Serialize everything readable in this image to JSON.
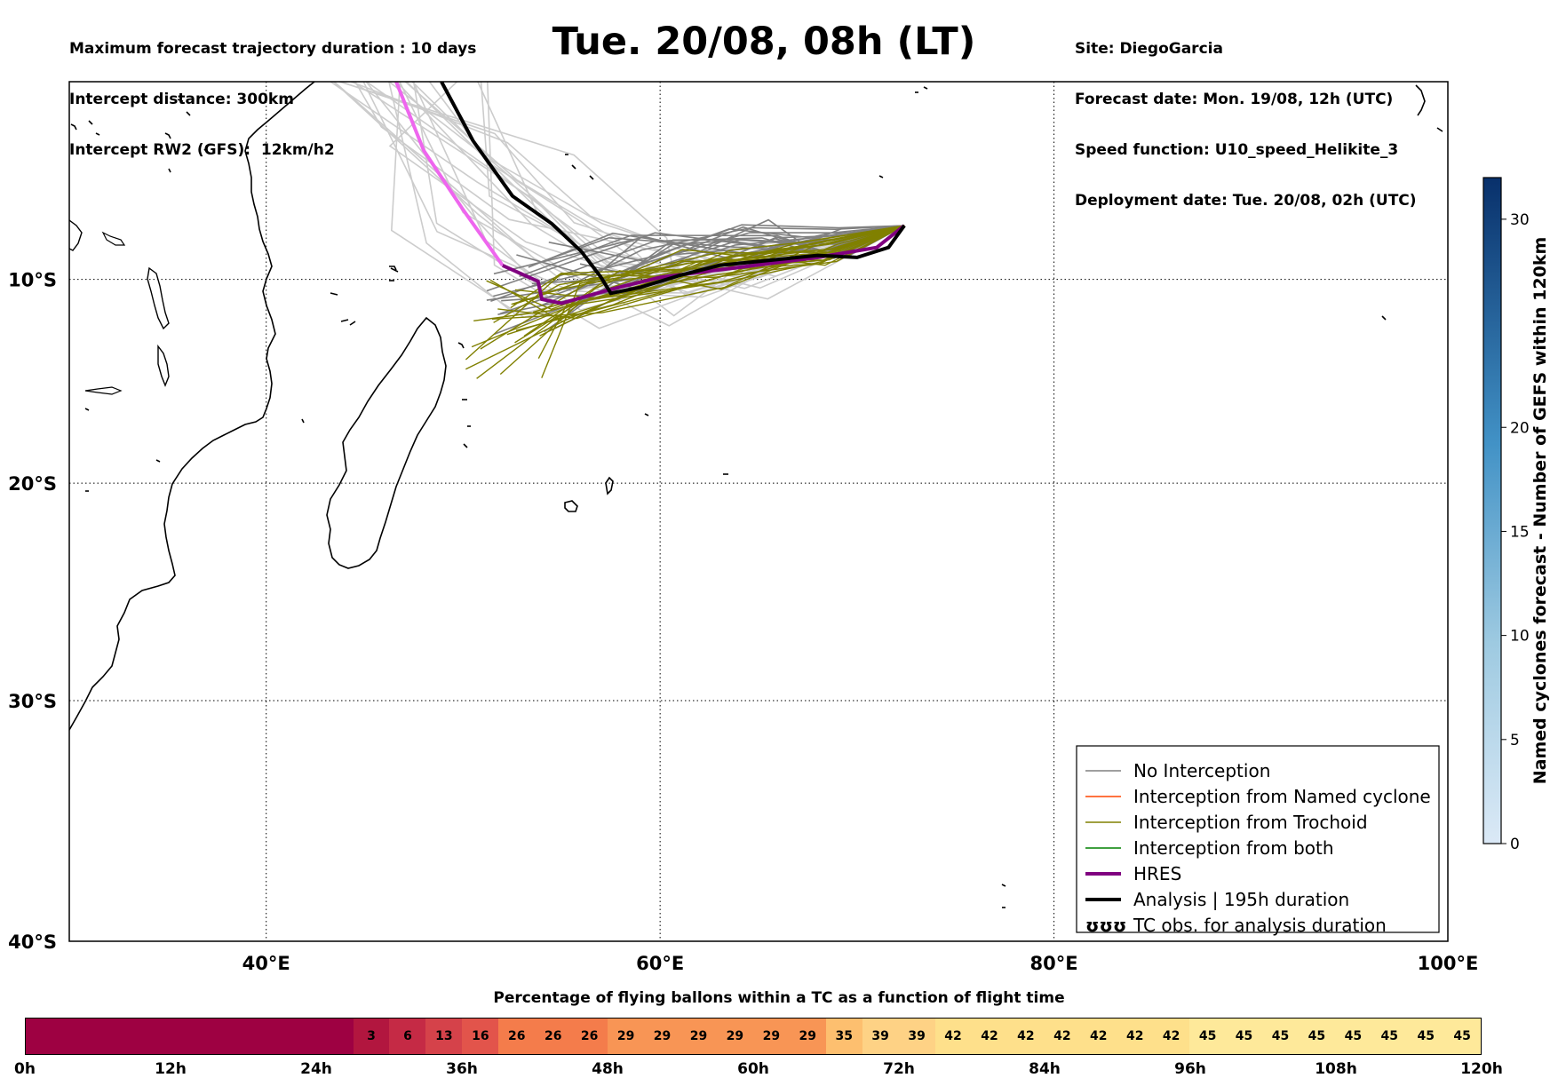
{
  "header": {
    "left": [
      "Maximum forecast trajectory duration : 10 days",
      "Intercept distance: 300km",
      "Intercept RW2 (GFS):  12km/h2"
    ],
    "right": [
      "Site: DiegoGarcia",
      "Forecast date: Mon. 19/08, 12h (UTC)",
      "Speed function: U10_speed_Helikite_3",
      "Deployment date: Tue. 20/08, 02h (UTC)"
    ],
    "title": "Tue. 20/08, 08h (LT)"
  },
  "map": {
    "lon_range": [
      30,
      100
    ],
    "lat_range": [
      -40,
      0
    ],
    "lon_ticks": [
      "40°E",
      "60°E",
      "80°E",
      "100°E"
    ],
    "lat_ticks": [
      "10°S",
      "20°S",
      "30°S",
      "40°S"
    ],
    "launch_site": [
      72.4,
      -7.3
    ]
  },
  "legend": {
    "items": [
      {
        "label": "No Interception",
        "color": "#808080"
      },
      {
        "label": "Interception from Named cyclone",
        "color": "#ff4500"
      },
      {
        "label": "Interception from Trochoid",
        "color": "#808000"
      },
      {
        "label": "Interception from both",
        "color": "#008000"
      },
      {
        "label": "HRES",
        "color": "#800080"
      },
      {
        "label": "Analysis | 195h duration",
        "color": "#000000"
      },
      {
        "label": "TC obs. for analysis duration",
        "symbol": "ʊʊʊ"
      }
    ]
  },
  "colorbar": {
    "title": "Named cyclones forecast - Number of GEFS within 120km",
    "min": 0,
    "max": 32,
    "ticks": [
      "0",
      "5",
      "10",
      "15",
      "20",
      "30"
    ]
  },
  "time_bar": {
    "title": "Percentage of flying ballons within a TC as a function of flight time",
    "tick_labels": [
      "0h",
      "12h",
      "24h",
      "36h",
      "48h",
      "60h",
      "72h",
      "84h",
      "96h",
      "108h",
      "120h"
    ],
    "cells": [
      {
        "hours": 27,
        "label": "",
        "color": "#9e0142"
      },
      {
        "hours": 3,
        "label": "3",
        "color": "#b2163f"
      },
      {
        "hours": 3,
        "label": "6",
        "color": "#c52a45"
      },
      {
        "hours": 3,
        "label": "13",
        "color": "#d5424a"
      },
      {
        "hours": 3,
        "label": "16",
        "color": "#e2544b"
      },
      {
        "hours": 3,
        "label": "26",
        "color": "#f47c4b"
      },
      {
        "hours": 3,
        "label": "26",
        "color": "#f47c4b"
      },
      {
        "hours": 3,
        "label": "26",
        "color": "#f47c4b"
      },
      {
        "hours": 3,
        "label": "29",
        "color": "#f89555"
      },
      {
        "hours": 3,
        "label": "29",
        "color": "#f89555"
      },
      {
        "hours": 3,
        "label": "29",
        "color": "#f89555"
      },
      {
        "hours": 3,
        "label": "29",
        "color": "#f89555"
      },
      {
        "hours": 3,
        "label": "29",
        "color": "#f89555"
      },
      {
        "hours": 3,
        "label": "29",
        "color": "#f89555"
      },
      {
        "hours": 3,
        "label": "35",
        "color": "#fdbf6f"
      },
      {
        "hours": 3,
        "label": "39",
        "color": "#fed285"
      },
      {
        "hours": 3,
        "label": "39",
        "color": "#fed285"
      },
      {
        "hours": 3,
        "label": "42",
        "color": "#fee08b"
      },
      {
        "hours": 3,
        "label": "42",
        "color": "#fee08b"
      },
      {
        "hours": 3,
        "label": "42",
        "color": "#fee08b"
      },
      {
        "hours": 3,
        "label": "42",
        "color": "#fee08b"
      },
      {
        "hours": 3,
        "label": "42",
        "color": "#fee08b"
      },
      {
        "hours": 3,
        "label": "42",
        "color": "#fee08b"
      },
      {
        "hours": 3,
        "label": "42",
        "color": "#fee08b"
      },
      {
        "hours": 3,
        "label": "45",
        "color": "#fee99a"
      },
      {
        "hours": 3,
        "label": "45",
        "color": "#fee99a"
      },
      {
        "hours": 3,
        "label": "45",
        "color": "#fee99a"
      },
      {
        "hours": 3,
        "label": "45",
        "color": "#fee99a"
      },
      {
        "hours": 3,
        "label": "45",
        "color": "#fee99a"
      },
      {
        "hours": 3,
        "label": "45",
        "color": "#fee99a"
      },
      {
        "hours": 3,
        "label": "45",
        "color": "#fee99a"
      },
      {
        "hours": 3,
        "label": "45",
        "color": "#fee99a"
      }
    ]
  }
}
